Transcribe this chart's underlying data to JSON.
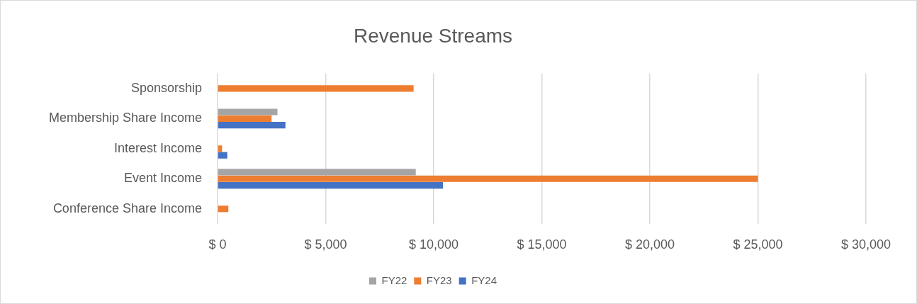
{
  "chart_data": {
    "type": "bar",
    "orientation": "horizontal",
    "title": "Revenue Streams",
    "categories": [
      "Sponsorship",
      "Membership Share Income",
      "Interest Income",
      "Event Income",
      "Conference Share Income"
    ],
    "series": [
      {
        "name": "FY22",
        "color": "#a5a5a5",
        "values": [
          null,
          2770,
          null,
          9170,
          null
        ]
      },
      {
        "name": "FY23",
        "color": "#ed7d31",
        "values": [
          9070,
          2500,
          210,
          25000,
          500
        ]
      },
      {
        "name": "FY24",
        "color": "#4472c4",
        "values": [
          null,
          3140,
          450,
          10430,
          null
        ]
      }
    ],
    "xlim": [
      0,
      30000
    ],
    "xticks": [
      {
        "value": 0,
        "label": "$ 0"
      },
      {
        "value": 5000,
        "label": "$ 5,000"
      },
      {
        "value": 10000,
        "label": "$ 10,000"
      },
      {
        "value": 15000,
        "label": "$ 15,000"
      },
      {
        "value": 20000,
        "label": "$ 20,000"
      },
      {
        "value": 25000,
        "label": "$ 25,000"
      },
      {
        "value": 30000,
        "label": "$ 30,000"
      }
    ],
    "grid": "x",
    "legend": "bottom"
  }
}
